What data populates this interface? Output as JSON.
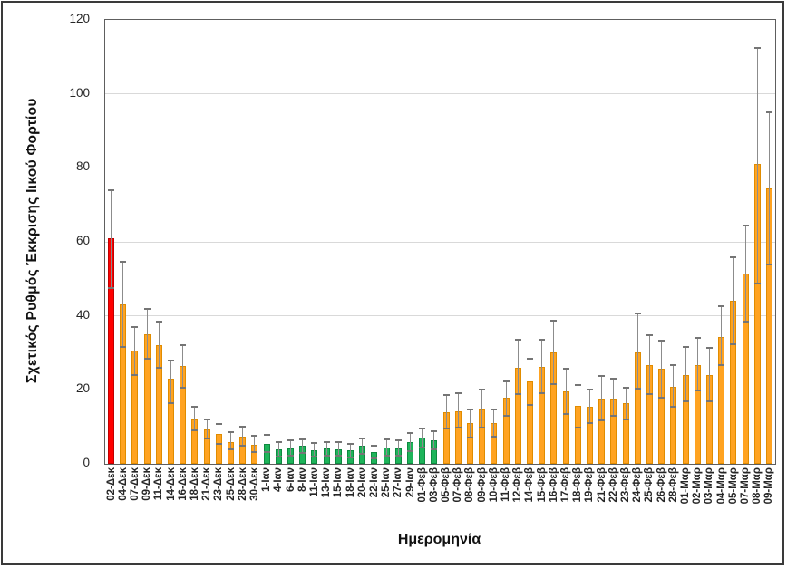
{
  "chart_data": {
    "type": "bar",
    "title": "",
    "xlabel": "Ημερομηνία",
    "ylabel": "Σχετικός Ρυθμός Έκκρισης Ιικού Φορτίου",
    "ylim": [
      0,
      120
    ],
    "yticks": [
      0,
      20,
      40,
      60,
      80,
      100,
      120
    ],
    "grid": true,
    "legend_position": "none",
    "error_bars": true,
    "categories": [
      "02-Δεκ",
      "04-Δεκ",
      "07-Δεκ",
      "09-Δεκ",
      "11-Δεκ",
      "14-Δεκ",
      "16-Δεκ",
      "18-Δεκ",
      "21-Δεκ",
      "23-Δεκ",
      "25-Δεκ",
      "28-Δεκ",
      "30-Δεκ",
      "1-Ιαν",
      "4-Ιαν",
      "6-Ιαν",
      "8-Ιαν",
      "11-Ιαν",
      "13-Ιαν",
      "15-Ιαν",
      "18-Ιαν",
      "20-Ιαν",
      "22-Ιαν",
      "25-Ιαν",
      "27-Ιαν",
      "29-Ιαν",
      "01-Φεβ",
      "03-Φεβ",
      "05-Φεβ",
      "07-Φεβ",
      "08-Φεβ",
      "09-Φεβ",
      "10-Φεβ",
      "11-Φεβ",
      "12-Φεβ",
      "14-Φεβ",
      "15-Φεβ",
      "16-Φεβ",
      "17-Φεβ",
      "18-Φεβ",
      "19-Φεβ",
      "21-Φεβ",
      "22-Φεβ",
      "23-Φεβ",
      "24-Φεβ",
      "25-Φεβ",
      "26-Φεβ",
      "28-Φεβ",
      "01-Μαρ",
      "02-Μαρ",
      "03-Μαρ",
      "04-Μαρ",
      "05-Μαρ",
      "07-Μαρ",
      "08-Μαρ",
      "09-Μαρ"
    ],
    "values": [
      61,
      43,
      30.5,
      35,
      32,
      23,
      26.5,
      12,
      9.3,
      8,
      5.8,
      7.4,
      5.2,
      5.5,
      3.9,
      4.2,
      4.9,
      3.7,
      4.2,
      4,
      3.6,
      4.8,
      3.1,
      4.4,
      4.1,
      5.8,
      7,
      6.4,
      14,
      14.3,
      11,
      14.8,
      11,
      18,
      26,
      22.2,
      26.2,
      30.1,
      19.7,
      15.7,
      15.4,
      17.7,
      17.7,
      16.4,
      30.2,
      26.8,
      25.6,
      20.9,
      24,
      26.8,
      24,
      34.3,
      44.1,
      51.5,
      81,
      74.5
    ],
    "error_low": [
      47.5,
      31.5,
      24,
      28.5,
      26,
      16.5,
      20.5,
      9,
      6.8,
      5.4,
      3.8,
      4.9,
      3.1,
      3.1,
      1.9,
      2.2,
      2.9,
      1.9,
      2.2,
      2.1,
      1.8,
      2.8,
      1.5,
      2.3,
      2.1,
      3.4,
      4.4,
      4,
      9.5,
      9.7,
      7.2,
      9.7,
      7.3,
      13.1,
      18.8,
      15.9,
      19.2,
      21.6,
      13.5,
      9.9,
      11.1,
      11.7,
      13.1,
      12,
      20.3,
      18.9,
      18,
      15.4,
      17,
      19.9,
      17,
      26.6,
      32.3,
      38.4,
      48.7,
      54
    ],
    "error_high": [
      74,
      54.5,
      37,
      42,
      38.5,
      28,
      32,
      15.5,
      12,
      10.8,
      8.5,
      10,
      7.7,
      7.8,
      6,
      6.4,
      6.7,
      5.6,
      6,
      5.9,
      5.4,
      6.8,
      4.8,
      6.5,
      6.3,
      8.3,
      9.5,
      8.7,
      18.6,
      19,
      14.6,
      20,
      14.8,
      22.4,
      33.5,
      28.5,
      33.5,
      38.8,
      25.7,
      21.2,
      20,
      23.8,
      23,
      20.5,
      40.6,
      34.7,
      33.3,
      26.8,
      31.5,
      34.1,
      31.3,
      42.6,
      55.9,
      64.4,
      112.5,
      95
    ],
    "bar_groups": [
      "red",
      "orange",
      "orange",
      "orange",
      "orange",
      "orange",
      "orange",
      "orange",
      "orange",
      "orange",
      "orange",
      "orange",
      "orange",
      "green",
      "green",
      "green",
      "green",
      "green",
      "green",
      "green",
      "green",
      "green",
      "green",
      "green",
      "green",
      "green",
      "green",
      "green",
      "orange",
      "orange",
      "orange",
      "orange",
      "orange",
      "orange",
      "orange",
      "orange",
      "orange",
      "orange",
      "orange",
      "orange",
      "orange",
      "orange",
      "orange",
      "orange",
      "orange",
      "orange",
      "orange",
      "orange",
      "orange",
      "orange",
      "orange",
      "orange",
      "orange",
      "orange",
      "orange",
      "orange"
    ],
    "group_colors": {
      "red": "#ff0000",
      "orange": "#ffa321",
      "green": "#1eb45a"
    },
    "group_border_colors": {
      "red": "#c00000",
      "orange": "#e08c00",
      "green": "#0e8a40"
    }
  },
  "style": {
    "axis_color": "#5e5e5e",
    "gridline_color": "#d9d9d9",
    "error_bar_color": "#8c8c8c",
    "error_cap_color": "#757575",
    "tick_label_color": "#262626",
    "outer_border_color": "#3a3a3a",
    "background": "#ffffff"
  }
}
